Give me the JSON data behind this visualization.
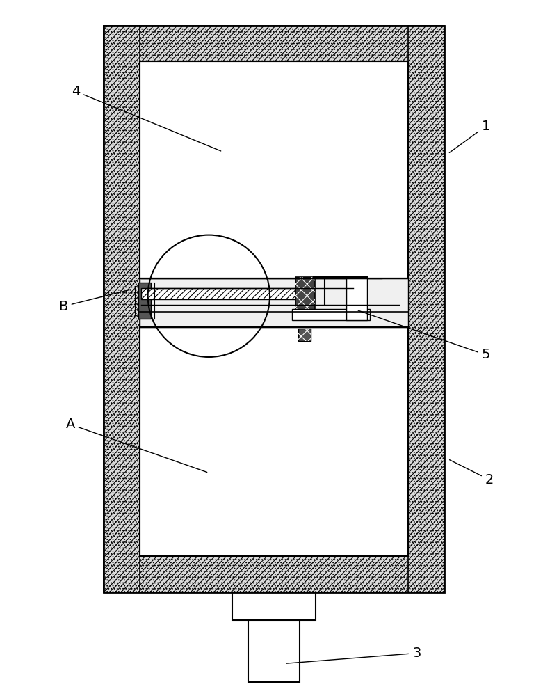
{
  "bg_color": "#ffffff",
  "fig_width": 7.81,
  "fig_height": 10.0,
  "dpi": 100,
  "wall_fill": "#e8e8e8",
  "white": "#ffffff",
  "dark": "#333333",
  "mid_gray": "#888888",
  "hatch_lw": 0.5
}
